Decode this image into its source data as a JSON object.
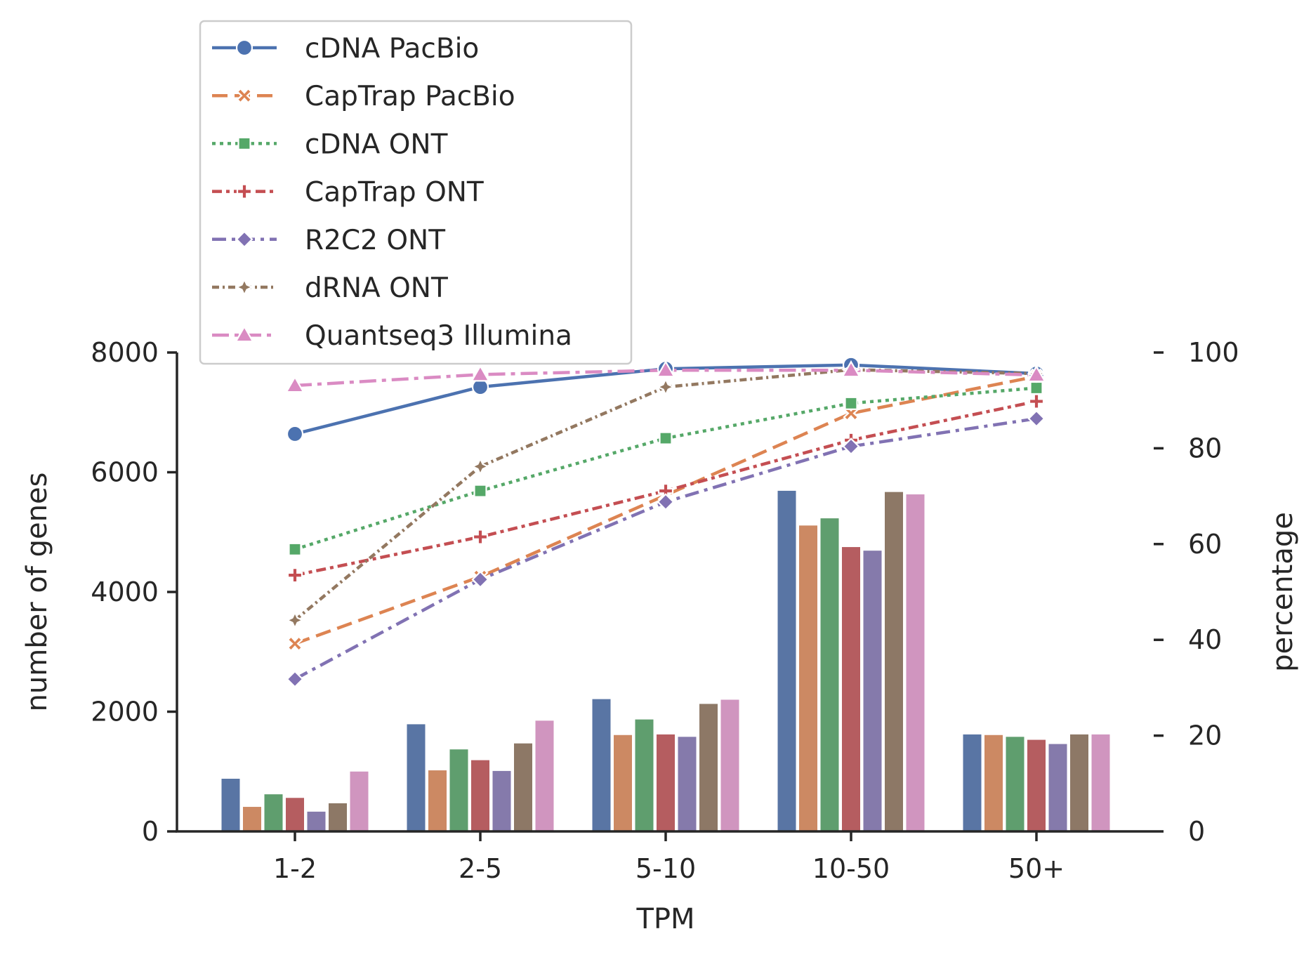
{
  "chart_data": {
    "type": "bar",
    "categories": [
      "1-2",
      "2-5",
      "5-10",
      "10-50",
      "50+"
    ],
    "xlabel": "TPM",
    "ylabel": "number of genes",
    "ylim": [
      0,
      8000
    ],
    "yticks": [
      0,
      2000,
      4000,
      6000,
      8000
    ],
    "y2label": "percentage",
    "y2lim": [
      0,
      100
    ],
    "y2ticks": [
      0,
      20,
      40,
      60,
      80,
      100
    ],
    "grid": false,
    "legend_position": "upper-left",
    "series": [
      {
        "name": "cDNA PacBio",
        "color": "#4c72b0",
        "bar_color": "#5975a4",
        "line_style": "solid",
        "marker": "circle",
        "bar_values": [
          880,
          1790,
          2210,
          5690,
          1620
        ],
        "line_values": [
          83.0,
          92.8,
          96.6,
          97.4,
          95.6
        ]
      },
      {
        "name": "CapTrap PacBio",
        "color": "#dd8452",
        "bar_color": "#cc8963",
        "line_style": "dashed",
        "marker": "x-filled",
        "bar_values": [
          410,
          1020,
          1610,
          5110,
          1610
        ],
        "line_values": [
          39.2,
          53.2,
          70.2,
          87.3,
          95.0
        ]
      },
      {
        "name": "cDNA ONT",
        "color": "#55a868",
        "bar_color": "#5f9e6e",
        "line_style": "dotted",
        "marker": "square",
        "bar_values": [
          620,
          1370,
          1870,
          5230,
          1580
        ],
        "line_values": [
          58.9,
          71.1,
          82.1,
          89.4,
          92.6
        ]
      },
      {
        "name": "CapTrap ONT",
        "color": "#c44e52",
        "bar_color": "#b55d60",
        "line_style": "dashdot-dense",
        "marker": "plus-filled",
        "bar_values": [
          560,
          1190,
          1620,
          4750,
          1530
        ],
        "line_values": [
          53.5,
          61.5,
          71.1,
          81.7,
          89.8
        ]
      },
      {
        "name": "R2C2 ONT",
        "color": "#8172b3",
        "bar_color": "#857aab",
        "line_style": "dashdot",
        "marker": "diamond",
        "bar_values": [
          330,
          1010,
          1580,
          4690,
          1460
        ],
        "line_values": [
          31.8,
          52.6,
          68.8,
          80.4,
          86.2
        ]
      },
      {
        "name": "dRNA ONT",
        "color": "#937860",
        "bar_color": "#8d7866",
        "line_style": "dashdot-long",
        "marker": "thin-diamond",
        "bar_values": [
          470,
          1470,
          2130,
          5670,
          1620
        ],
        "line_values": [
          44.1,
          76.2,
          92.8,
          96.4,
          95.6
        ]
      },
      {
        "name": "Quantseq3 Illumina",
        "color": "#da8bc3",
        "bar_color": "#d095bf",
        "line_style": "dashdot-2",
        "marker": "triangle",
        "bar_values": [
          1000,
          1850,
          2200,
          5630,
          1620
        ],
        "line_values": [
          93.1,
          95.4,
          96.3,
          96.3,
          95.3
        ]
      }
    ]
  }
}
